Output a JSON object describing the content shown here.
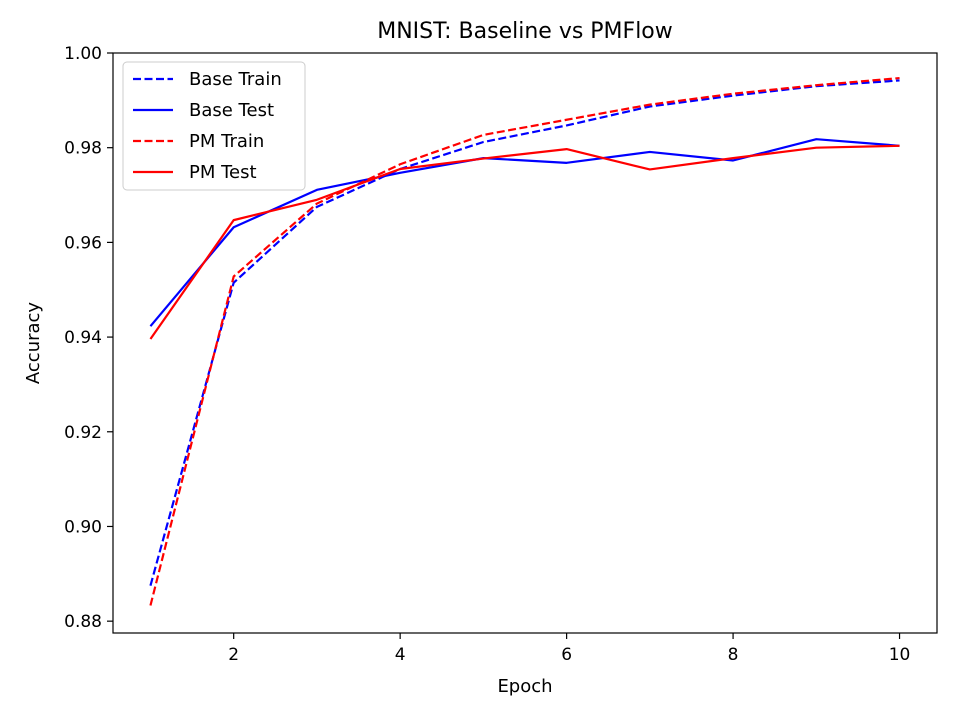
{
  "chart_data": {
    "type": "line",
    "title": "MNIST: Baseline vs PMFlow",
    "xlabel": "Epoch",
    "ylabel": "Accuracy",
    "xlim": [
      0.55,
      10.45
    ],
    "ylim": [
      0.8775,
      1.0
    ],
    "xticks": [
      2,
      4,
      6,
      8,
      10
    ],
    "xtick_labels": [
      "2",
      "4",
      "6",
      "8",
      "10"
    ],
    "yticks": [
      0.88,
      0.9,
      0.92,
      0.94,
      0.96,
      0.98,
      1.0
    ],
    "ytick_labels": [
      "0.88",
      "0.90",
      "0.92",
      "0.94",
      "0.96",
      "0.98",
      "1.00"
    ],
    "grid": false,
    "legend_position": "upper-left",
    "x": [
      1,
      2,
      3,
      4,
      5,
      6,
      7,
      8,
      9,
      10
    ],
    "series": [
      {
        "name": "Base Train",
        "color": "#0000ff",
        "style": "dashed",
        "values": [
          0.8875,
          0.9515,
          0.9675,
          0.9755,
          0.9812,
          0.9847,
          0.9887,
          0.991,
          0.993,
          0.9942
        ]
      },
      {
        "name": "Base Test",
        "color": "#0000ff",
        "style": "solid",
        "values": [
          0.9423,
          0.9632,
          0.9711,
          0.9747,
          0.9778,
          0.9768,
          0.9791,
          0.9773,
          0.9818,
          0.9804
        ]
      },
      {
        "name": "PM Train",
        "color": "#ff0000",
        "style": "dashed",
        "values": [
          0.8833,
          0.9528,
          0.9682,
          0.9765,
          0.9827,
          0.9859,
          0.9891,
          0.9914,
          0.9932,
          0.9947
        ]
      },
      {
        "name": "PM Test",
        "color": "#ff0000",
        "style": "solid",
        "values": [
          0.9396,
          0.9647,
          0.969,
          0.9755,
          0.9777,
          0.9797,
          0.9754,
          0.9778,
          0.98,
          0.9804
        ]
      }
    ]
  }
}
